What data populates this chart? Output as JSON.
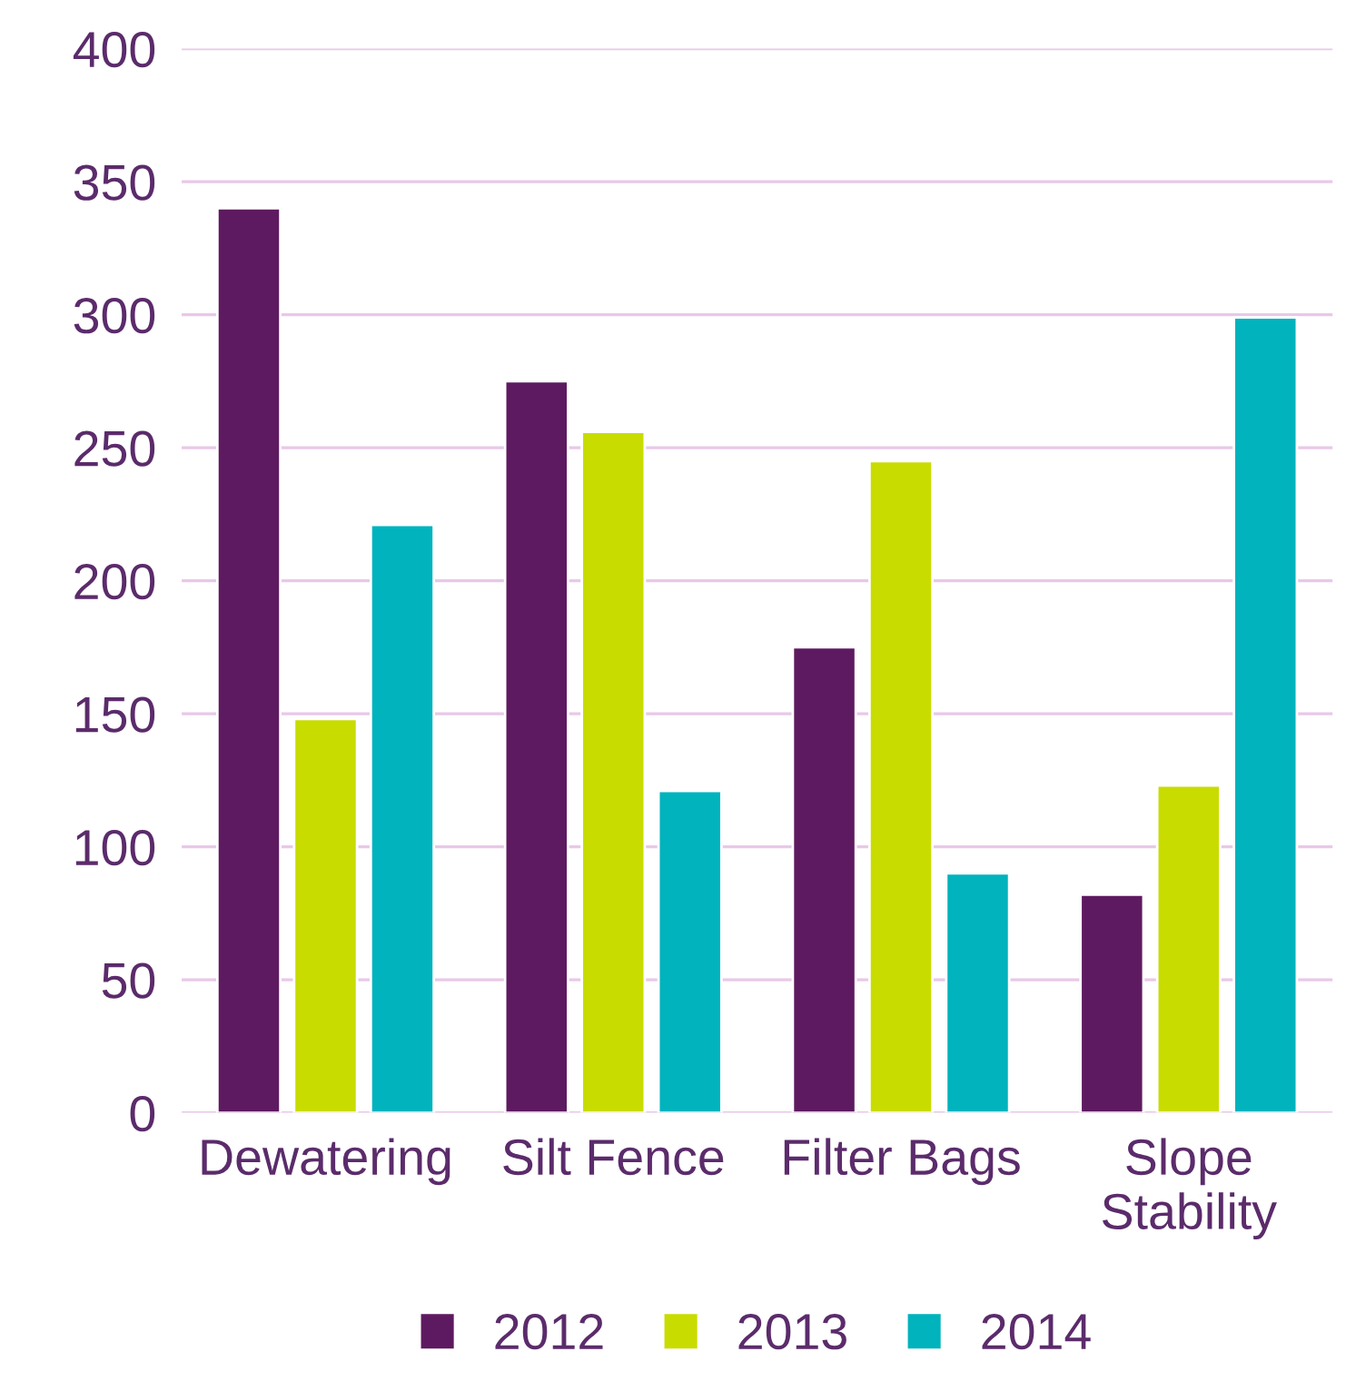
{
  "chart_data": {
    "type": "bar",
    "categories": [
      "Dewatering",
      "Silt Fence",
      "Filter Bags",
      "Slope\nStability"
    ],
    "series": [
      {
        "name": "2012",
        "color": "#5e1a60",
        "values": [
          340,
          275,
          175,
          82
        ]
      },
      {
        "name": "2013",
        "color": "#c9dc00",
        "values": [
          148,
          256,
          245,
          123
        ]
      },
      {
        "name": "2014",
        "color": "#00b3bd",
        "values": [
          221,
          121,
          90,
          299
        ]
      }
    ],
    "ylim": [
      0,
      400
    ],
    "yticks": [
      0,
      50,
      100,
      150,
      200,
      250,
      300,
      350,
      400
    ],
    "grid": "y",
    "legend": "bottom"
  }
}
